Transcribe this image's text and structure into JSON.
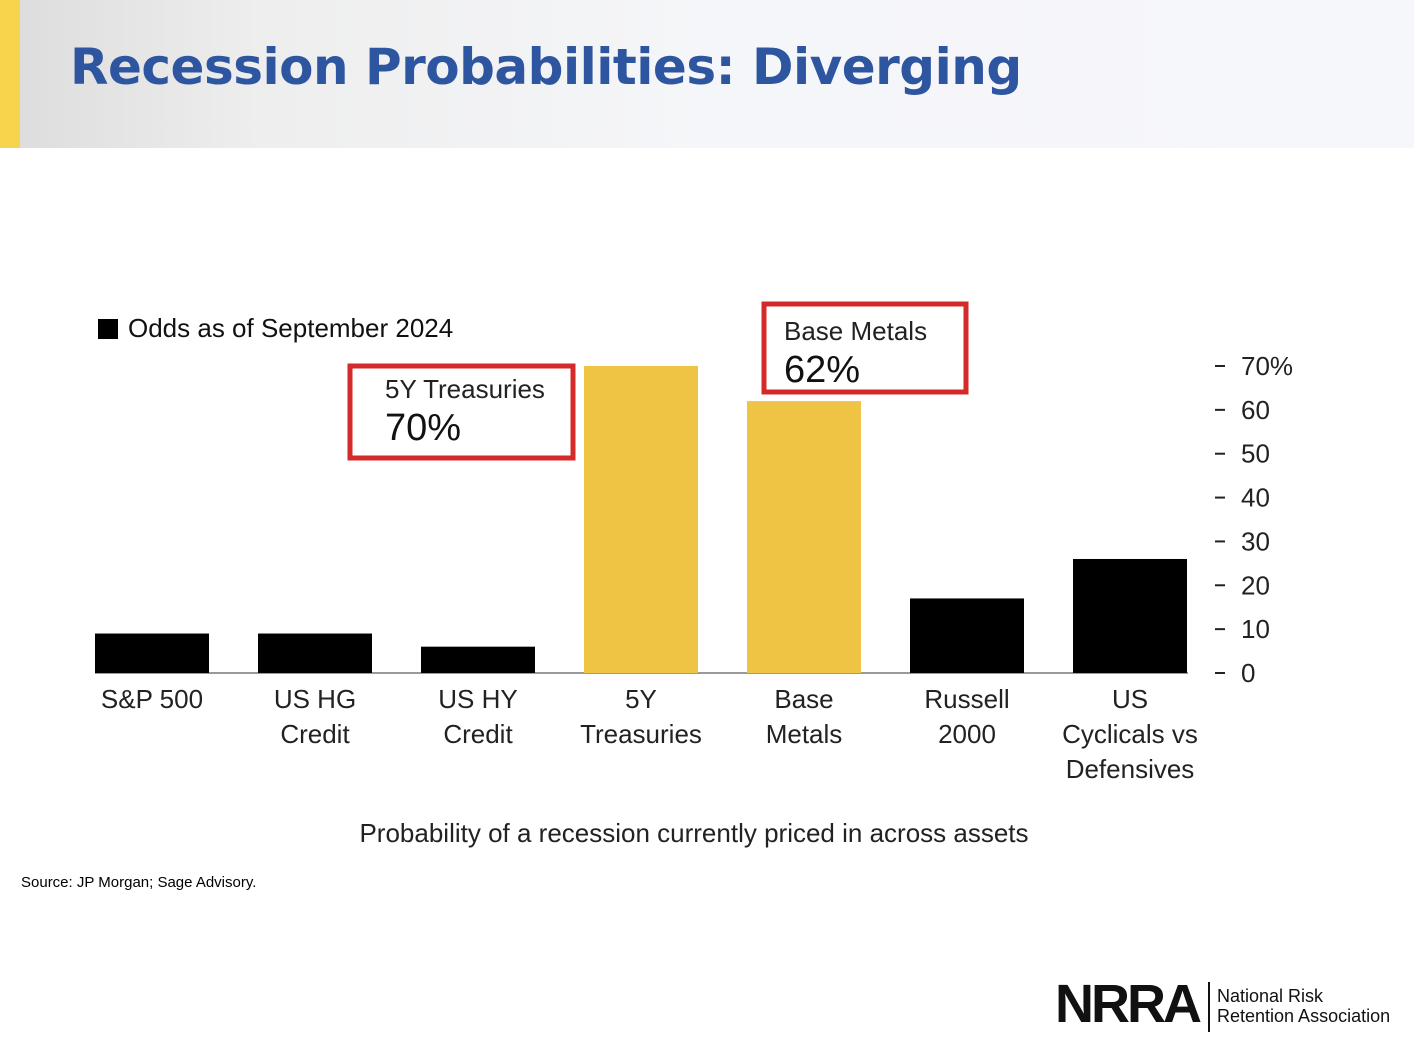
{
  "slide": {
    "title": "Recession Probabilities: Diverging",
    "source": "Source: JP Morgan; Sage Advisory."
  },
  "logo": {
    "mark": "NRRA",
    "line1": "National Risk",
    "line2": "Retention Association"
  },
  "colors": {
    "title": "#2e56a0",
    "accent_bar": "#f7d44c",
    "bar_default": "#000000",
    "bar_highlight": "#efc444",
    "callout_border": "#d42a2a"
  },
  "chart_data": {
    "type": "bar",
    "legend": "Odds as of September 2024",
    "categories": [
      [
        "S&P 500"
      ],
      [
        "US HG",
        "Credit"
      ],
      [
        "US HY",
        "Credit"
      ],
      [
        "5Y",
        "Treasuries"
      ],
      [
        "Base",
        "Metals"
      ],
      [
        "Russell",
        "2000"
      ],
      [
        "US",
        "Cyclicals vs",
        "Defensives"
      ]
    ],
    "values": [
      9,
      9,
      6,
      70,
      62,
      17,
      26
    ],
    "highlight": [
      false,
      false,
      false,
      true,
      true,
      false,
      false
    ],
    "ylim": [
      0,
      70
    ],
    "yticks": [
      "0",
      "10",
      "20",
      "30",
      "40",
      "50",
      "60",
      "70%"
    ],
    "yaxis_side": "right",
    "xlabel": "Probability of a recession currently priced in across assets",
    "callouts": [
      {
        "label": "5Y Treasuries",
        "value": "70%",
        "category_index": 3
      },
      {
        "label": "Base Metals",
        "value": "62%",
        "category_index": 4
      }
    ]
  }
}
